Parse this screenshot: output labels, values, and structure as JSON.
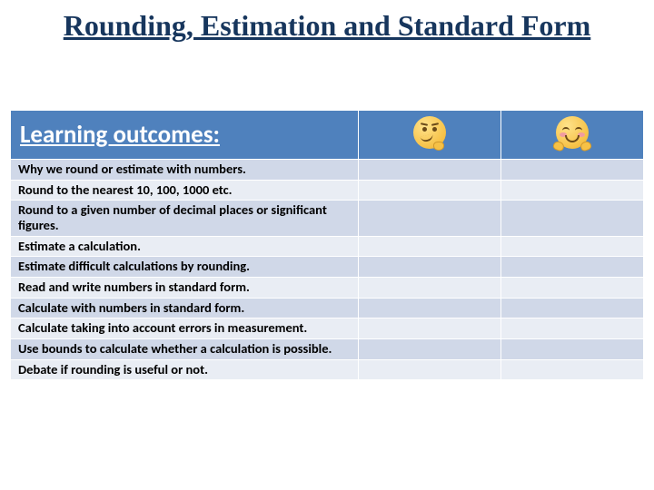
{
  "title": {
    "text": "Rounding, Estimation and Standard Form",
    "fontsize": 32,
    "color": "#17365d"
  },
  "table": {
    "header": {
      "main": "Learning outcomes:",
      "emoji_left": {
        "name": "thinking-face",
        "semantic": "unsure / need work"
      },
      "emoji_right": {
        "name": "hugging-face",
        "semantic": "confident / got it"
      },
      "background": "#4f81bd",
      "text_color": "#ffffff",
      "fontsize": 27
    },
    "band_colors": {
      "a": "#d0d8e8",
      "b": "#e9edf4"
    },
    "border_color": "#ffffff",
    "body_fontsize": 14.5,
    "col_widths_pct": [
      55,
      22.5,
      22.5
    ],
    "outcomes": [
      "Why we round or estimate with numbers.",
      "Round to the nearest 10, 100, 1000 etc.",
      "Round to a given number of decimal places or significant figures.",
      "Estimate a calculation.",
      "Estimate difficult calculations by rounding.",
      "Read and write numbers in standard form.",
      "Calculate with numbers in standard form.",
      "Calculate taking into account errors in measurement.",
      "Use bounds to calculate whether a calculation is possible.",
      "Debate if rounding is useful or not."
    ]
  }
}
